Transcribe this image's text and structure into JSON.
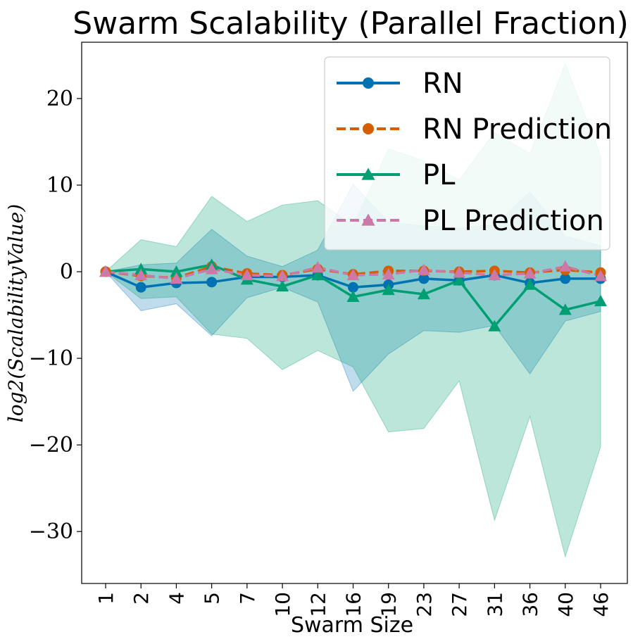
{
  "chart_data": {
    "type": "line",
    "title": "Swarm Scalability (Parallel Fraction)",
    "xlabel": "Swarm Size",
    "ylabel": "log2(ScalabilityValue)",
    "categories": [
      "1",
      "2",
      "4",
      "5",
      "7",
      "10",
      "12",
      "16",
      "19",
      "23",
      "27",
      "31",
      "36",
      "40",
      "46"
    ],
    "ylim": [
      -36,
      26.5
    ],
    "yticks": [
      20,
      10,
      0,
      -10,
      -20,
      -30
    ],
    "ytick_labels": [
      "20",
      "10",
      "0",
      "−10",
      "−20",
      "−30"
    ],
    "legend_position": "upper-right",
    "grid": false,
    "series": [
      {
        "name": "RN",
        "color": "#0072b2",
        "style": "solid",
        "marker": "circle",
        "values": [
          0,
          -1.8,
          -1.3,
          -1.2,
          -0.6,
          -0.6,
          -0.4,
          -1.8,
          -1.5,
          -0.8,
          -1.0,
          -0.4,
          -1.3,
          -0.8,
          -0.8
        ]
      },
      {
        "name": "RN Prediction",
        "color": "#d55e00",
        "style": "dashed",
        "marker": "circle",
        "values": [
          0,
          -0.5,
          -0.7,
          0.6,
          -0.2,
          -0.4,
          0.3,
          -0.3,
          0.1,
          0.1,
          0.0,
          0.1,
          -0.1,
          0.2,
          -0.1
        ]
      },
      {
        "name": "PL",
        "color": "#009e73",
        "style": "solid",
        "marker": "triangle",
        "values": [
          0,
          0.3,
          0.0,
          0.8,
          -0.9,
          -1.7,
          -0.4,
          -2.9,
          -2.1,
          -2.6,
          -1.0,
          -6.3,
          -1.5,
          -4.4,
          -3.4
        ]
      },
      {
        "name": "PL Prediction",
        "color": "#cc79a7",
        "style": "dashed",
        "marker": "triangle",
        "values": [
          0,
          -0.4,
          -0.8,
          0.3,
          -0.4,
          -0.5,
          0.5,
          -0.4,
          -0.3,
          0.2,
          -0.1,
          -0.4,
          -0.2,
          0.6,
          -0.5
        ]
      }
    ],
    "bands": [
      {
        "series": "RN",
        "color": "#0072b2",
        "opacity": 0.25,
        "upper": [
          0,
          0.8,
          1.0,
          4.9,
          1.8,
          0.6,
          2.5,
          10.1,
          5.7,
          5.3,
          5.0,
          5.4,
          9.2,
          4.1,
          3.0
        ],
        "lower": [
          0,
          -4.5,
          -3.7,
          -7.4,
          -3.0,
          -1.8,
          -3.5,
          -13.8,
          -9.5,
          -6.8,
          -7.0,
          -6.2,
          -11.8,
          -5.7,
          -4.6
        ]
      },
      {
        "series": "PL",
        "color": "#009e73",
        "opacity": 0.26,
        "upper": [
          0,
          3.7,
          2.9,
          8.7,
          5.8,
          7.7,
          8.2,
          5.3,
          14.2,
          12.8,
          10.6,
          16.1,
          13.6,
          24.0,
          13.4
        ],
        "lower": [
          0,
          -3.1,
          -2.9,
          -7.2,
          -7.7,
          -11.3,
          -9.1,
          -11.0,
          -18.5,
          -18.1,
          -12.6,
          -28.7,
          -16.7,
          -32.9,
          -20.2
        ]
      }
    ]
  }
}
